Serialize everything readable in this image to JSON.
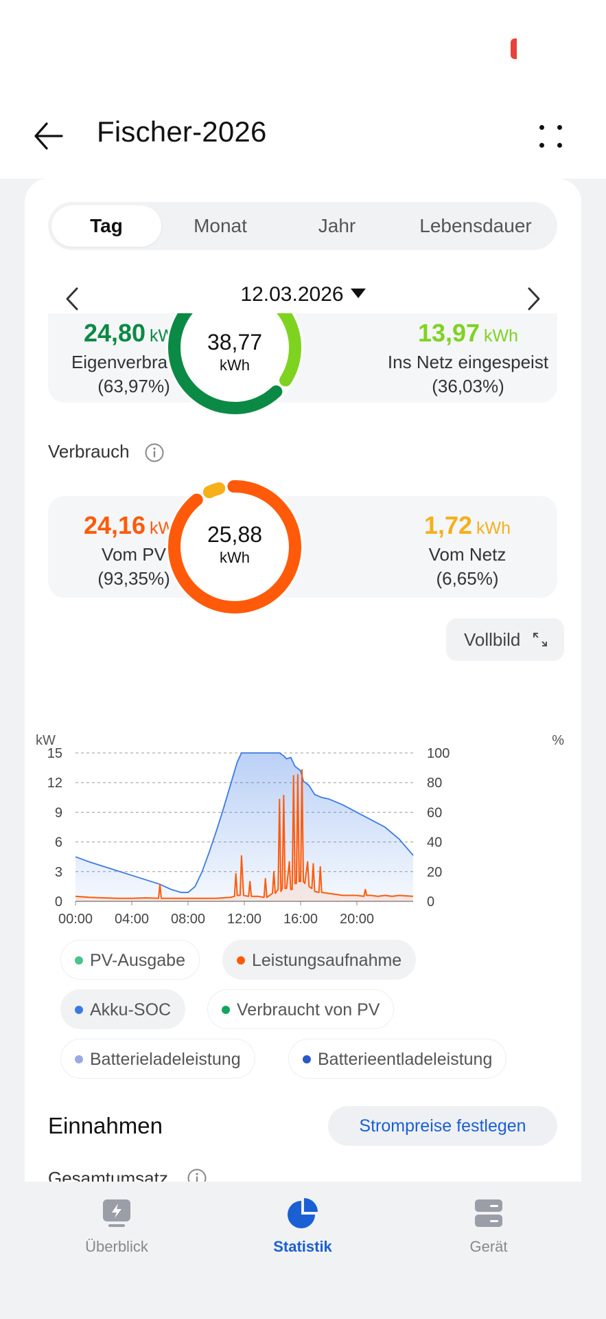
{
  "header": {
    "title": "Fischer-2026"
  },
  "tabs": [
    {
      "label": "Tag",
      "active": true
    },
    {
      "label": "Monat",
      "active": false
    },
    {
      "label": "Jahr",
      "active": false
    },
    {
      "label": "Lebensdauer",
      "active": false
    }
  ],
  "date": {
    "label": "12.03.2026"
  },
  "generation": {
    "total": "38,77",
    "unit": "kWh",
    "self_use": {
      "value": "24,80",
      "unit": "kWh",
      "label": "Eigenverbrauch",
      "percent": "(63,97%)",
      "color": "#0b8a45"
    },
    "fed_in": {
      "value": "13,97",
      "unit": "kWh",
      "label": "Ins Netz eingespeist",
      "percent": "(36,03%)",
      "color": "#7ed321"
    }
  },
  "consumption": {
    "section_label": "Verbrauch",
    "total": "25,88",
    "unit": "kWh",
    "from_pv": {
      "value": "24,16",
      "unit": "kWh",
      "label": "Vom PV",
      "percent": "(93,35%)",
      "color": "#ff5a0a"
    },
    "from_grid": {
      "value": "1,72",
      "unit": "kWh",
      "label": "Vom Netz",
      "percent": "(6,65%)",
      "color": "#f5b01a"
    }
  },
  "fullscreen_label": "Vollbild",
  "chart_data": {
    "type": "line",
    "y_left_unit": "kW",
    "y_right_unit": "%",
    "y_left_ticks": [
      "0",
      "3",
      "6",
      "9",
      "12",
      "15"
    ],
    "y_right_ticks": [
      "0",
      "20",
      "40",
      "60",
      "80",
      "100"
    ],
    "y_left_range": [
      0,
      15
    ],
    "y_right_range": [
      0,
      100
    ],
    "x_ticks": [
      "00:00",
      "04:00",
      "08:00",
      "12:00",
      "16:00",
      "20:00"
    ],
    "x_range_hours": [
      0,
      24
    ],
    "grid": true,
    "series": [
      {
        "name": "Akku-SOC",
        "axis": "right",
        "color": "#3b7ae6",
        "points": [
          [
            0,
            30
          ],
          [
            1,
            26.5
          ],
          [
            2,
            23.5
          ],
          [
            3,
            20.5
          ],
          [
            4,
            17.5
          ],
          [
            5,
            14.5
          ],
          [
            6,
            11.5
          ],
          [
            6.8,
            8
          ],
          [
            7.5,
            6
          ],
          [
            8,
            6
          ],
          [
            8.5,
            10
          ],
          [
            9,
            20
          ],
          [
            9.5,
            33
          ],
          [
            10,
            47
          ],
          [
            10.5,
            62
          ],
          [
            11,
            78
          ],
          [
            11.5,
            94
          ],
          [
            11.8,
            100
          ],
          [
            12.5,
            100
          ],
          [
            13,
            100
          ],
          [
            14,
            100
          ],
          [
            14.5,
            100
          ],
          [
            14.8,
            98
          ],
          [
            15,
            96
          ],
          [
            15.3,
            97
          ],
          [
            15.6,
            91
          ],
          [
            16,
            88
          ],
          [
            16.2,
            81
          ],
          [
            16.6,
            78
          ],
          [
            17,
            72
          ],
          [
            17.5,
            70
          ],
          [
            18,
            69
          ],
          [
            19,
            65
          ],
          [
            20,
            60
          ],
          [
            21,
            55
          ],
          [
            22,
            50
          ],
          [
            23,
            42
          ],
          [
            24,
            31
          ]
        ]
      },
      {
        "name": "Leistungsaufnahme",
        "axis": "left",
        "color": "#ff5a0a",
        "points": [
          [
            0,
            0.5
          ],
          [
            1,
            0.4
          ],
          [
            2,
            0.35
          ],
          [
            3,
            0.3
          ],
          [
            4,
            0.3
          ],
          [
            5,
            0.35
          ],
          [
            5.9,
            0.3
          ],
          [
            6,
            1.7
          ],
          [
            6.1,
            0.3
          ],
          [
            7,
            0.3
          ],
          [
            8,
            0.3
          ],
          [
            9,
            0.3
          ],
          [
            10,
            0.3
          ],
          [
            11,
            0.4
          ],
          [
            11.3,
            0.5
          ],
          [
            11.4,
            2.8
          ],
          [
            11.5,
            0.6
          ],
          [
            11.7,
            0.6
          ],
          [
            11.8,
            4.6
          ],
          [
            11.95,
            0.6
          ],
          [
            12.3,
            0.5
          ],
          [
            12.4,
            2.0
          ],
          [
            12.5,
            0.5
          ],
          [
            13,
            0.5
          ],
          [
            13.4,
            0.4
          ],
          [
            13.5,
            2.3
          ],
          [
            13.6,
            0.4
          ],
          [
            14,
            0.8
          ],
          [
            14.1,
            3.0
          ],
          [
            14.2,
            0.8
          ],
          [
            14.4,
            1.2
          ],
          [
            14.5,
            10.3
          ],
          [
            14.6,
            1.0
          ],
          [
            14.7,
            1.3
          ],
          [
            14.8,
            10.7
          ],
          [
            14.9,
            1.3
          ],
          [
            15,
            1.3
          ],
          [
            15.2,
            4.0
          ],
          [
            15.3,
            1.2
          ],
          [
            15.4,
            1.2
          ],
          [
            15.5,
            12.7
          ],
          [
            15.6,
            1.8
          ],
          [
            15.7,
            1.8
          ],
          [
            15.8,
            12.8
          ],
          [
            15.9,
            2.0
          ],
          [
            16,
            2.0
          ],
          [
            16.1,
            13.3
          ],
          [
            16.2,
            2.0
          ],
          [
            16.3,
            1.8
          ],
          [
            16.5,
            4.0
          ],
          [
            16.6,
            1.5
          ],
          [
            16.8,
            1.3
          ],
          [
            16.9,
            3.8
          ],
          [
            17,
            1.0
          ],
          [
            17.3,
            0.9
          ],
          [
            17.4,
            3.5
          ],
          [
            17.5,
            0.9
          ],
          [
            18,
            0.8
          ],
          [
            18.5,
            0.7
          ],
          [
            19,
            0.6
          ],
          [
            20,
            0.6
          ],
          [
            20.5,
            0.5
          ],
          [
            20.6,
            1.2
          ],
          [
            20.7,
            0.6
          ],
          [
            21,
            0.6
          ],
          [
            21.5,
            0.5
          ],
          [
            22,
            0.6
          ],
          [
            22.5,
            0.5
          ],
          [
            23,
            0.6
          ],
          [
            24,
            0.5
          ]
        ]
      }
    ]
  },
  "legend": [
    {
      "label": "PV-Ausgabe",
      "color": "#4cc38a",
      "active": false
    },
    {
      "label": "Leistungsaufnahme",
      "color": "#ff5a0a",
      "active": true
    },
    {
      "label": "Akku-SOC",
      "color": "#3b7ae6",
      "active": true
    },
    {
      "label": "Verbraucht von PV",
      "color": "#12a561",
      "active": false
    },
    {
      "label": "Batterieladeleistung",
      "color": "#99a9e6",
      "active": false
    },
    {
      "label": "Batterieentladeleistung",
      "color": "#2a58c9",
      "active": false
    }
  ],
  "income": {
    "title": "Einnahmen",
    "button_label": "Strompreise festlegen",
    "revenue_label": "Gesamtumsatz"
  },
  "bottom_nav": [
    {
      "label": "Überblick",
      "icon": "lightning-screen-icon",
      "active": false
    },
    {
      "label": "Statistik",
      "icon": "pie-chart-icon",
      "active": true
    },
    {
      "label": "Gerät",
      "icon": "device-icon",
      "active": false
    }
  ]
}
